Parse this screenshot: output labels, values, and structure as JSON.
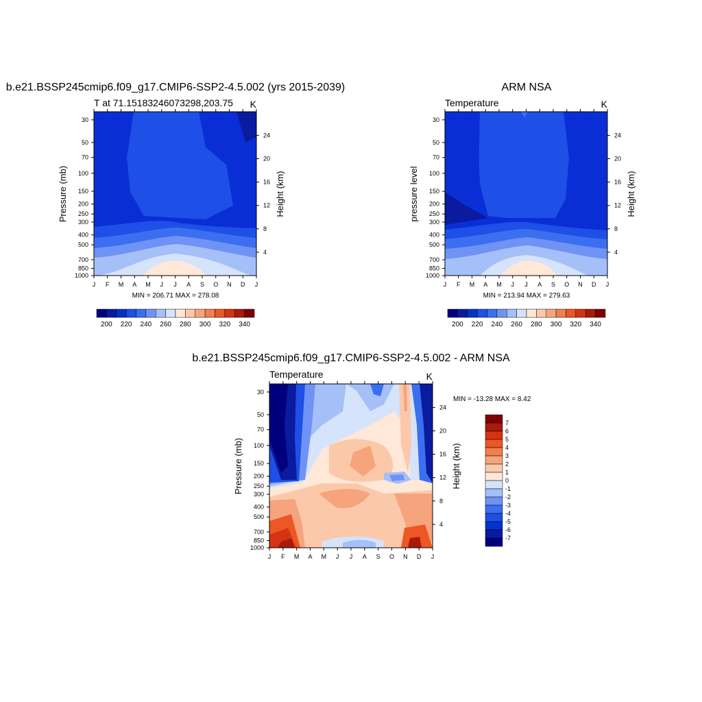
{
  "colors": {
    "levels_abs": [
      "#00007F",
      "#0A1B9F",
      "#0033CC",
      "#1E4FE6",
      "#3C6EF0",
      "#6E93F5",
      "#A5BFF8",
      "#D5E3FB",
      "#FFE8D8",
      "#FBC9AA",
      "#F6A47D",
      "#F1804E",
      "#EC5723",
      "#D63312",
      "#A91B09",
      "#7F0000"
    ],
    "levels_diff": [
      "#00007F",
      "#0A1B9F",
      "#0033CC",
      "#1E4FE6",
      "#3C6EF0",
      "#6E93F5",
      "#A5BFF8",
      "#D5E3FB",
      "#FFE8D8",
      "#FBC9AA",
      "#F6A47D",
      "#F1804E",
      "#EC5723",
      "#D63312",
      "#A91B09",
      "#7F0000"
    ]
  },
  "chart_data": [
    {
      "type": "heatmap",
      "title": "b.e21.BSSP245cmip6.f09_g17.CMIP6-SSP2-4.5.002 (yrs 2015-2039)",
      "subtitle_left": "T at 71.15183246073298,203.75",
      "subtitle_right": "K",
      "ylabel": "Pressure (mb)",
      "ylabel_right": "Height (km)",
      "x_ticks": [
        "J",
        "F",
        "M",
        "A",
        "M",
        "J",
        "J",
        "A",
        "S",
        "O",
        "N",
        "D",
        "J"
      ],
      "y_ticks": [
        "30",
        "50",
        "70",
        "100",
        "150",
        "200",
        "250",
        "300",
        "400",
        "500",
        "700",
        "850",
        "1000"
      ],
      "y_ticks_right": [
        "24",
        "20",
        "16",
        "12",
        "8",
        "4"
      ],
      "stats": "MIN = 206.71 MAX = 278.08",
      "colorbar_labels": [
        "200",
        "220",
        "240",
        "260",
        "280",
        "300",
        "320",
        "340"
      ],
      "ylim": [
        1000,
        25
      ]
    },
    {
      "type": "heatmap",
      "title": "ARM NSA",
      "subtitle_left": "Temperature",
      "subtitle_right": "K",
      "ylabel": "pressure level",
      "ylabel_right": "Height (km)",
      "x_ticks": [
        "J",
        "F",
        "M",
        "A",
        "M",
        "J",
        "J",
        "A",
        "S",
        "O",
        "N",
        "D",
        "J"
      ],
      "y_ticks": [
        "30",
        "50",
        "70",
        "100",
        "150",
        "200",
        "250",
        "300",
        "400",
        "500",
        "700",
        "850",
        "1000"
      ],
      "y_ticks_right": [
        "24",
        "20",
        "16",
        "12",
        "8",
        "4"
      ],
      "stats": "MIN = 213.94 MAX = 279.63",
      "colorbar_labels": [
        "200",
        "220",
        "240",
        "260",
        "280",
        "300",
        "320",
        "340"
      ],
      "ylim": [
        1000,
        25
      ]
    },
    {
      "type": "heatmap",
      "title": "b.e21.BSSP245cmip6.f09_g17.CMIP6-SSP2-4.5.002 - ARM NSA",
      "subtitle_left": "Temperature",
      "subtitle_right": "K",
      "ylabel": "Pressure (mb)",
      "ylabel_right": "Height (km)",
      "x_ticks": [
        "J",
        "F",
        "M",
        "A",
        "M",
        "J",
        "J",
        "A",
        "S",
        "O",
        "N",
        "D",
        "J"
      ],
      "y_ticks": [
        "30",
        "50",
        "70",
        "100",
        "150",
        "200",
        "250",
        "300",
        "400",
        "500",
        "700",
        "850",
        "1000"
      ],
      "y_ticks_right": [
        "24",
        "20",
        "16",
        "12",
        "8",
        "4"
      ],
      "stats": "MIN = -13.28 MAX =   8.42",
      "colorbar_labels": [
        "7",
        "6",
        "5",
        "4",
        "3",
        "2",
        "1",
        "0",
        "-1",
        "-2",
        "-3",
        "-4",
        "-5",
        "-6",
        "-7"
      ],
      "ylim": [
        1000,
        25
      ]
    }
  ]
}
